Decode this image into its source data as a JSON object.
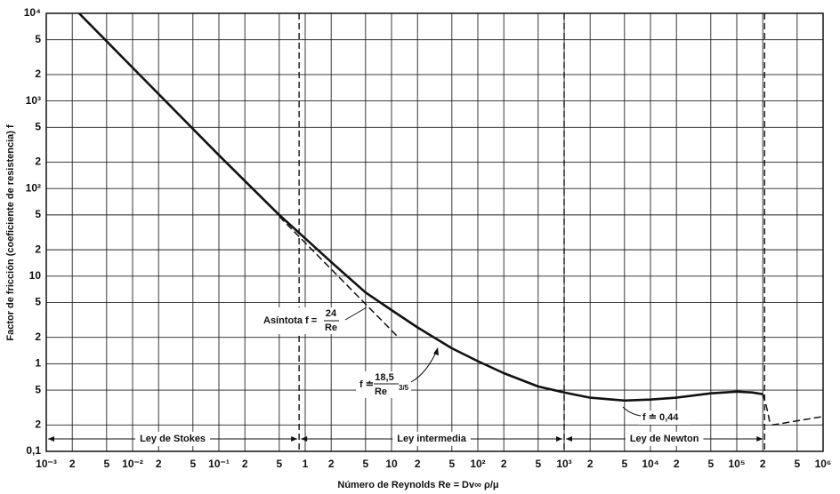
{
  "chart_data": {
    "type": "line",
    "x_label": "Número de Reynolds Re = Dv∞ ρ/μ",
    "y_label": "Factor de fricción (coeficiente de resistencia) f",
    "log_x": true,
    "log_y": true,
    "grid": true,
    "xlim": [
      0.001,
      1000000
    ],
    "ylim": [
      0.1,
      10000
    ],
    "xticks": [
      {
        "value": 0.001,
        "label": "10⁻³"
      },
      {
        "value": 0.002,
        "label": "2"
      },
      {
        "value": 0.005,
        "label": "5"
      },
      {
        "value": 0.01,
        "label": "10⁻²"
      },
      {
        "value": 0.02,
        "label": "2"
      },
      {
        "value": 0.05,
        "label": "5"
      },
      {
        "value": 0.1,
        "label": "10⁻¹"
      },
      {
        "value": 0.2,
        "label": "2"
      },
      {
        "value": 0.5,
        "label": "5"
      },
      1,
      2,
      5,
      10,
      {
        "value": 20,
        "label": "2"
      },
      {
        "value": 50,
        "label": "5"
      },
      {
        "value": 100,
        "label": "10²"
      },
      {
        "value": 200,
        "label": "2"
      },
      {
        "value": 500,
        "label": "5"
      },
      {
        "value": 1000,
        "label": "10³"
      },
      {
        "value": 2000,
        "label": "2"
      },
      {
        "value": 5000,
        "label": "5"
      },
      {
        "value": 10000,
        "label": "10⁴"
      },
      {
        "value": 20000,
        "label": "2"
      },
      {
        "value": 50000,
        "label": "5"
      },
      {
        "value": 100000,
        "label": "10⁵"
      },
      {
        "value": 200000,
        "label": "2"
      },
      {
        "value": 500000,
        "label": "5"
      },
      {
        "value": 1000000,
        "label": "10⁶"
      }
    ],
    "yticks": [
      {
        "value": 0.1,
        "label": "0,1"
      },
      {
        "value": 0.2,
        "label": "2"
      },
      {
        "value": 0.5,
        "label": "5"
      },
      1,
      2,
      5,
      10,
      {
        "value": 20,
        "label": "2"
      },
      {
        "value": 50,
        "label": "5"
      },
      {
        "value": 100,
        "label": "10²"
      },
      {
        "value": 200,
        "label": "2"
      },
      {
        "value": 500,
        "label": "5"
      },
      {
        "value": 1000,
        "label": "10³"
      },
      {
        "value": 2000,
        "label": "2"
      },
      {
        "value": 5000,
        "label": "5"
      },
      {
        "value": 10000,
        "label": "10⁴"
      }
    ],
    "series": [
      {
        "color": "#111111",
        "dashed": false,
        "x": [
          0.0024,
          0.01,
          0.1,
          0.5,
          1,
          2,
          5,
          10,
          20,
          50,
          100,
          200,
          500,
          1000,
          2000,
          5000,
          10000,
          20000,
          50000,
          100000,
          150000,
          200000
        ],
        "values": [
          10000,
          2400,
          240,
          50,
          27,
          14.5,
          6.5,
          4.1,
          2.6,
          1.5,
          1.07,
          0.78,
          0.55,
          0.47,
          0.41,
          0.38,
          0.39,
          0.41,
          0.46,
          0.48,
          0.47,
          0.45
        ]
      },
      {
        "color": "#111111",
        "dashed": true,
        "x": [
          200000,
          220000,
          240000,
          260000,
          1000000
        ],
        "values": [
          0.45,
          0.33,
          0.22,
          0.2,
          0.25
        ]
      },
      {
        "color": "#111111",
        "dashed": true,
        "x": [
          0.5,
          12
        ],
        "values": [
          48,
          2
        ]
      }
    ],
    "vlines": [
      0.85,
      1000,
      210000
    ],
    "regions": [
      {
        "label": "Ley de Stokes",
        "from": 0.001,
        "to": 0.85
      },
      {
        "label": "Ley intermedia",
        "from": 0.85,
        "to": 1000
      },
      {
        "label": "Ley de Newton",
        "from": 1000,
        "to": 210000
      }
    ],
    "annotations": {
      "asymptote": {
        "prefix": "Asíntota f =",
        "numerator": "24",
        "denominator": "Re"
      },
      "intermediate": {
        "prefix": "f ≐",
        "numerator": "18,5",
        "denominator": "Re",
        "exponent": "3/5"
      },
      "newton": {
        "text": "f ≐ 0,44"
      }
    }
  }
}
